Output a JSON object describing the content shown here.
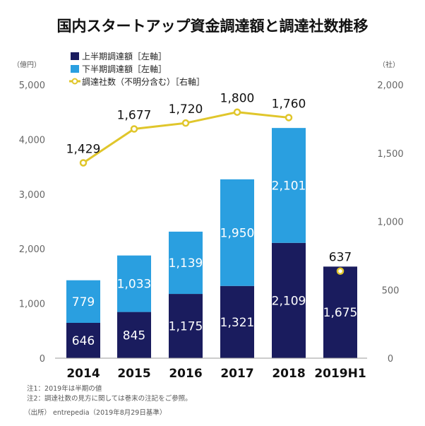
{
  "chart_data": {
    "type": "bar",
    "title": "国内スタートアップ資金調達額と調達社数推移",
    "left_unit": "（億円）",
    "right_unit": "（社）",
    "categories": [
      "2014",
      "2015",
      "2016",
      "2017",
      "2018",
      "2019H1"
    ],
    "ylim_left": [
      0,
      5000
    ],
    "yticks_left": [
      "0",
      "1,000",
      "2,000",
      "3,000",
      "4,000",
      "5,000"
    ],
    "ylim_right": [
      0,
      2000
    ],
    "yticks_right": [
      "0",
      "500",
      "1,000",
      "1,500",
      "2,000"
    ],
    "series": [
      {
        "name": "上半期調達額［左軸］",
        "kind": "bar",
        "axis": "left",
        "color": "#1a1c5e",
        "values": [
          646,
          845,
          1175,
          1321,
          2109,
          1675
        ],
        "labels": [
          "646",
          "845",
          "1,175",
          "1,321",
          "2,109",
          "1,675"
        ]
      },
      {
        "name": "下半期調達額［左軸］",
        "kind": "bar",
        "axis": "left",
        "color": "#2a9fe0",
        "values": [
          779,
          1033,
          1139,
          1950,
          2101,
          null
        ],
        "labels": [
          "779",
          "1,033",
          "1,139",
          "1,950",
          "2,101",
          null
        ]
      },
      {
        "name": "調達社数（不明分含む）［右軸］",
        "kind": "line",
        "axis": "right",
        "color": "#e0c62b",
        "values": [
          1429,
          1677,
          1720,
          1800,
          1760,
          637
        ],
        "labels": [
          "1,429",
          "1,677",
          "1,720",
          "1,800",
          "1,760",
          "637"
        ]
      }
    ],
    "notes": [
      "注1：2019年は半期の値",
      "注2：調達社数の見方に関しては巻末の注記をご参照。",
      "（出所） entrepedia（2019年8月29日基準）"
    ]
  }
}
